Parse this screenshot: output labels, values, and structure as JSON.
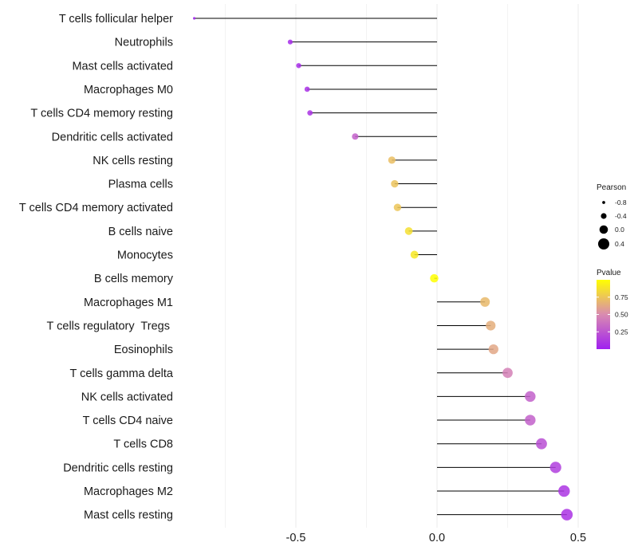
{
  "chart_data": {
    "type": "lollipop",
    "title": "",
    "xlabel": "",
    "ylabel": "",
    "xlim": [
      -0.85,
      0.5
    ],
    "x_ticks": [
      -0.5,
      0.0,
      0.5
    ],
    "x_tick_labels": [
      "-0.5",
      "0.0",
      "0.5"
    ],
    "gridlines": true,
    "categories": [
      "T cells follicular helper",
      "Neutrophils",
      "Mast cells activated",
      "Macrophages M0",
      "T cells CD4 memory resting",
      "Dendritic cells activated",
      "NK cells resting",
      "Plasma cells",
      "T cells CD4 memory activated",
      "B cells naive",
      "Monocytes",
      "B cells memory",
      "Macrophages M1",
      "T cells regulatory  Tregs ",
      "Eosinophils",
      "T cells gamma delta",
      "NK cells activated",
      "T cells CD4 naive",
      "T cells CD8",
      "Dendritic cells resting",
      "Macrophages M2",
      "Mast cells resting"
    ],
    "pearson": [
      -0.86,
      -0.52,
      -0.49,
      -0.46,
      -0.45,
      -0.29,
      -0.16,
      -0.15,
      -0.14,
      -0.1,
      -0.08,
      -0.01,
      0.17,
      0.19,
      0.2,
      0.25,
      0.33,
      0.33,
      0.37,
      0.42,
      0.45,
      0.46
    ],
    "pvalue": [
      0.01,
      0.05,
      0.06,
      0.08,
      0.09,
      0.3,
      0.72,
      0.74,
      0.75,
      0.86,
      0.9,
      1.0,
      0.7,
      0.65,
      0.62,
      0.45,
      0.3,
      0.3,
      0.22,
      0.14,
      0.1,
      0.09
    ],
    "legend_size": {
      "title": "Pearson",
      "values": [
        -0.8,
        -0.4,
        0.0,
        0.4
      ],
      "labels": [
        "-0.8",
        "-0.4",
        "0.0",
        "0.4"
      ]
    },
    "legend_color": {
      "title": "Pvalue",
      "ticks": [
        0.25,
        0.5,
        0.75
      ],
      "tick_labels": [
        "0.25",
        "0.50",
        "0.75"
      ],
      "range": [
        0.0,
        1.0
      ],
      "low_color": "#a020f0",
      "mid_color": "#d98bb0",
      "high_color": "#ffff00"
    },
    "legend_position": "right"
  },
  "colors": {
    "stem": "#000000",
    "grid": "#ebebeb",
    "background": "#ffffff"
  }
}
